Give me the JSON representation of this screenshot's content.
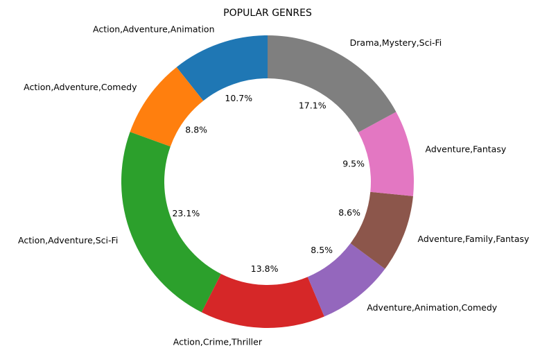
{
  "chart_data": {
    "type": "pie",
    "title": "POPULAR GENRES",
    "categories": [
      "Action,Adventure,Animation",
      "Action,Adventure,Comedy",
      "Action,Adventure,Sci-Fi",
      "Action,Crime,Thriller",
      "Adventure,Animation,Comedy",
      "Adventure,Family,Fantasy",
      "Adventure,Fantasy",
      "Drama,Mystery,Sci-Fi"
    ],
    "values": [
      10.7,
      8.8,
      23.1,
      13.8,
      8.5,
      8.6,
      9.5,
      17.1
    ],
    "value_labels": [
      "10.7%",
      "8.8%",
      "23.1%",
      "13.8%",
      "8.5%",
      "8.6%",
      "9.5%",
      "17.1%"
    ],
    "colors": [
      "#1f77b4",
      "#ff7f0e",
      "#2ca02c",
      "#d62728",
      "#9467bd",
      "#8c564b",
      "#e377c2",
      "#7f7f7f"
    ],
    "start_angle_deg": 90,
    "direction": "counterclockwise",
    "donut": true,
    "legend": "none"
  }
}
